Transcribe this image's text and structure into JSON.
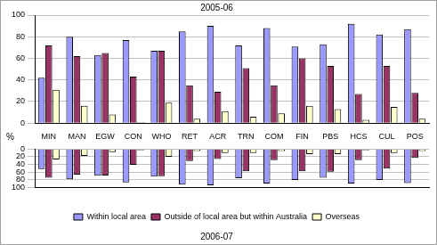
{
  "chart_data": [
    {
      "type": "bar",
      "title": "2005-06",
      "ylabel": "%",
      "categories": [
        "MIN",
        "MAN",
        "EGW",
        "CON",
        "WHO",
        "RET",
        "ACR",
        "TRN",
        "COM",
        "FIN",
        "PBS",
        "HCS",
        "CUL",
        "POS"
      ],
      "series": [
        {
          "name": "Within local area",
          "color": "#9999ff",
          "values": [
            42,
            80,
            63,
            77,
            67,
            85,
            90,
            72,
            88,
            71,
            73,
            92,
            82,
            87
          ]
        },
        {
          "name": "Outside of local area but within Australia",
          "color": "#993366",
          "values": [
            72,
            62,
            65,
            43,
            67,
            35,
            29,
            51,
            35,
            60,
            53,
            27,
            53,
            28
          ]
        },
        {
          "name": "Overseas",
          "color": "#ffffcc",
          "values": [
            31,
            16,
            8,
            1,
            19,
            4,
            11,
            6,
            9,
            16,
            13,
            3,
            15,
            4
          ]
        }
      ],
      "ylim": [
        0,
        100
      ],
      "yticks": [
        0,
        20,
        40,
        60,
        80,
        100
      ],
      "grid": true
    },
    {
      "type": "bar",
      "title": "2006-07",
      "categories": [
        null,
        null,
        null,
        null,
        null,
        null,
        null,
        null,
        null,
        null,
        null,
        null,
        null,
        null
      ],
      "series": [
        {
          "name": "Within local area",
          "color": "#9999ff",
          "values": [
            52,
            79,
            70,
            87,
            72,
            93,
            95,
            76,
            90,
            81,
            75,
            90,
            81,
            89
          ]
        },
        {
          "name": "Outside of local area but within Australia",
          "color": "#993366",
          "values": [
            75,
            67,
            69,
            41,
            71,
            31,
            26,
            58,
            29,
            58,
            59,
            29,
            51,
            23
          ]
        },
        {
          "name": "Overseas",
          "color": "#ffffcc",
          "values": [
            27,
            18,
            8,
            3,
            20,
            5,
            10,
            10,
            5,
            13,
            13,
            3,
            10,
            5
          ]
        }
      ],
      "ylim": [
        100,
        0
      ],
      "yticks": [
        0,
        20,
        40,
        60,
        80,
        100
      ],
      "grid": true,
      "legend": "bottom"
    }
  ]
}
